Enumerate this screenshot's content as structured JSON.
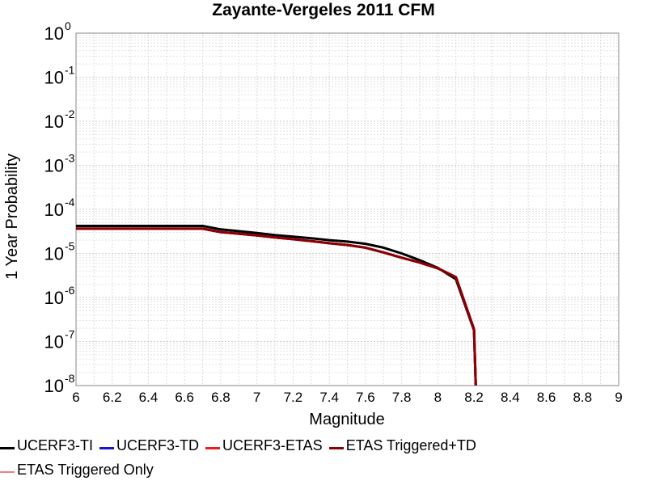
{
  "chart_data": {
    "type": "line",
    "title": "Zayante-Vergeles 2011 CFM",
    "xlabel": "Magnitude",
    "ylabel": "1 Year Probability",
    "xlim": [
      6,
      9
    ],
    "ylim": [
      1e-08,
      1
    ],
    "yscale": "log",
    "grid": true,
    "xticks": [
      "6",
      "6.2",
      "6.4",
      "6.6",
      "6.8",
      "7",
      "7.2",
      "7.4",
      "7.6",
      "7.8",
      "8",
      "8.2",
      "8.4",
      "8.6",
      "8.8",
      "9"
    ],
    "yticks": [
      {
        "base": "10",
        "exp": "0"
      },
      {
        "base": "10",
        "exp": "-1"
      },
      {
        "base": "10",
        "exp": "-2"
      },
      {
        "base": "10",
        "exp": "-3"
      },
      {
        "base": "10",
        "exp": "-4"
      },
      {
        "base": "10",
        "exp": "-5"
      },
      {
        "base": "10",
        "exp": "-6"
      },
      {
        "base": "10",
        "exp": "-7"
      },
      {
        "base": "10",
        "exp": "-8"
      }
    ],
    "legend_position": "bottom",
    "series": [
      {
        "name": "UCERF3-TI",
        "color": "#000000",
        "width": 3,
        "x": [
          6.0,
          6.1,
          6.2,
          6.3,
          6.4,
          6.5,
          6.6,
          6.7,
          6.8,
          6.9,
          7.0,
          7.1,
          7.2,
          7.3,
          7.4,
          7.5,
          7.6,
          7.7,
          7.8,
          7.9,
          8.0,
          8.1,
          8.2,
          8.21
        ],
        "y": [
          4.2e-05,
          4.2e-05,
          4.2e-05,
          4.2e-05,
          4.2e-05,
          4.2e-05,
          4.2e-05,
          4.2e-05,
          3.5e-05,
          3.2e-05,
          2.9e-05,
          2.6e-05,
          2.4e-05,
          2.2e-05,
          2e-05,
          1.85e-05,
          1.65e-05,
          1.35e-05,
          1e-05,
          7e-06,
          4.7e-06,
          2.6e-06,
          1.8e-07,
          1e-08
        ]
      },
      {
        "name": "UCERF3-TD",
        "color": "#1515d6",
        "width": 3,
        "x": [
          6.0,
          6.1,
          6.2,
          6.3,
          6.4,
          6.5,
          6.6,
          6.7,
          6.8,
          6.9,
          7.0,
          7.1,
          7.2,
          7.3,
          7.4,
          7.5,
          7.6,
          7.7,
          7.8,
          7.9,
          8.0,
          8.1,
          8.2,
          8.21
        ],
        "y": [
          3.65e-05,
          3.65e-05,
          3.65e-05,
          3.65e-05,
          3.65e-05,
          3.65e-05,
          3.65e-05,
          3.65e-05,
          3.05e-05,
          2.8e-05,
          2.55e-05,
          2.3e-05,
          2.1e-05,
          1.9e-05,
          1.7e-05,
          1.55e-05,
          1.35e-05,
          1.05e-05,
          8e-06,
          6.2e-06,
          4.6e-06,
          2.9e-06,
          1.9e-07,
          1e-08
        ]
      },
      {
        "name": "UCERF3-ETAS",
        "color": "#ee1c1c",
        "width": 3,
        "x": [
          6.0,
          6.1,
          6.2,
          6.3,
          6.4,
          6.5,
          6.6,
          6.7,
          6.8,
          6.9,
          7.0,
          7.1,
          7.2,
          7.3,
          7.4,
          7.5,
          7.6,
          7.7,
          7.8,
          7.9,
          8.0,
          8.1,
          8.2,
          8.21
        ],
        "y": [
          3.65e-05,
          3.65e-05,
          3.65e-05,
          3.65e-05,
          3.65e-05,
          3.65e-05,
          3.65e-05,
          3.65e-05,
          3.05e-05,
          2.8e-05,
          2.55e-05,
          2.3e-05,
          2.1e-05,
          1.9e-05,
          1.7e-05,
          1.55e-05,
          1.35e-05,
          1.05e-05,
          8e-06,
          6.2e-06,
          4.6e-06,
          2.9e-06,
          1.9e-07,
          1e-08
        ]
      },
      {
        "name": "ETAS Triggered+TD",
        "color": "#8b0000",
        "width": 3,
        "x": [
          6.0,
          6.1,
          6.2,
          6.3,
          6.4,
          6.5,
          6.6,
          6.7,
          6.8,
          6.9,
          7.0,
          7.1,
          7.2,
          7.3,
          7.4,
          7.5,
          7.6,
          7.7,
          7.8,
          7.9,
          8.0,
          8.1,
          8.2,
          8.21
        ],
        "y": [
          3.65e-05,
          3.65e-05,
          3.65e-05,
          3.65e-05,
          3.65e-05,
          3.65e-05,
          3.65e-05,
          3.65e-05,
          3.05e-05,
          2.8e-05,
          2.55e-05,
          2.3e-05,
          2.1e-05,
          1.9e-05,
          1.7e-05,
          1.55e-05,
          1.35e-05,
          1.05e-05,
          8e-06,
          6.2e-06,
          4.6e-06,
          2.9e-06,
          1.9e-07,
          1e-08
        ]
      },
      {
        "name": "ETAS Triggered Only",
        "color": "#f08080",
        "width": 1.5,
        "x": [],
        "y": []
      }
    ]
  }
}
